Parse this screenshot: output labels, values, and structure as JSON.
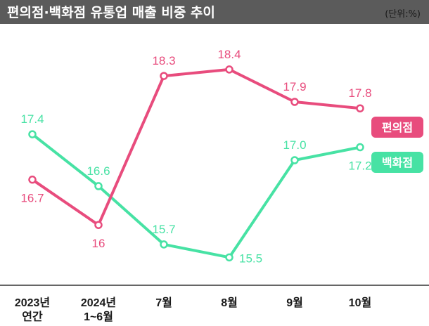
{
  "header": {
    "title": "편의점·백화점 유통업 매출 비중 추이",
    "unit": "(단위:%)"
  },
  "colors": {
    "title_bar": "#5b5b5b",
    "convenience": "#e84c7d",
    "department": "#47e2a4",
    "axis": "#333333",
    "text": "#1a1a1a"
  },
  "chart_data": {
    "type": "line",
    "categories": [
      [
        "2023년",
        "연간"
      ],
      [
        "2024년",
        "1~6월"
      ],
      [
        "7월"
      ],
      [
        "8월"
      ],
      [
        "9월"
      ],
      [
        "10월"
      ]
    ],
    "series": [
      {
        "name": "편의점",
        "values": [
          16.7,
          16,
          18.3,
          18.4,
          17.9,
          17.8
        ],
        "labels": [
          "16.7",
          "16",
          "18.3",
          "18.4",
          "17.9",
          "17.8"
        ],
        "label_side": [
          "below",
          "below",
          "above",
          "above",
          "above",
          "above"
        ]
      },
      {
        "name": "백화점",
        "values": [
          17.4,
          16.6,
          15.7,
          15.5,
          17.0,
          17.2
        ],
        "labels": [
          "17.4",
          "16.6",
          "15.7",
          "15.5",
          "17.0",
          "17.2"
        ],
        "label_side": [
          "above",
          "above",
          "above",
          "right",
          "above",
          "below"
        ]
      }
    ],
    "ylim": [
      15.2,
      18.8
    ],
    "grid": false,
    "legend": "right"
  }
}
